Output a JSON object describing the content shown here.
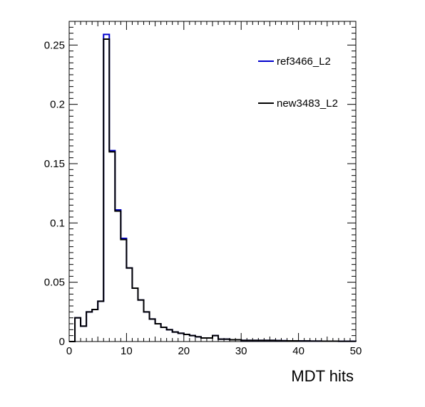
{
  "chart_data": {
    "type": "histogram",
    "xlabel": "MDT hits",
    "ylabel": "",
    "xlim": [
      0,
      50
    ],
    "ylim": [
      0,
      0.27
    ],
    "bin_width": 1,
    "grid": false,
    "legend_position": "top-right",
    "x_ticks": [
      0,
      10,
      20,
      30,
      40,
      50
    ],
    "x_tick_labels": [
      "0",
      "10",
      "20",
      "30",
      "40",
      "50"
    ],
    "y_ticks": [
      0,
      0.05,
      0.1,
      0.15,
      0.2,
      0.25
    ],
    "y_tick_labels": [
      "0",
      "0.05",
      "0.1",
      "0.15",
      "0.2",
      "0.25"
    ],
    "series": [
      {
        "name": "ref3466_L2",
        "color": "#0000cc",
        "values": [
          0.0,
          0.02,
          0.013,
          0.025,
          0.027,
          0.034,
          0.259,
          0.161,
          0.111,
          0.087,
          0.062,
          0.045,
          0.035,
          0.025,
          0.019,
          0.015,
          0.012,
          0.01,
          0.008,
          0.007,
          0.006,
          0.005,
          0.004,
          0.003,
          0.003,
          0.005,
          0.002,
          0.002,
          0.0015,
          0.0015,
          0.001,
          0.001,
          0.001,
          0.001,
          0.001,
          0.001,
          0.0008,
          0.0007,
          0.0006,
          0.0006,
          0.0005,
          0.0005,
          0.0004,
          0.0004,
          0.0003,
          0.0003,
          0.0003,
          0.0002,
          0.0002,
          0.0002
        ]
      },
      {
        "name": "new3483_L2",
        "color": "#000000",
        "values": [
          0.0,
          0.02,
          0.013,
          0.025,
          0.027,
          0.034,
          0.255,
          0.16,
          0.11,
          0.086,
          0.062,
          0.045,
          0.035,
          0.025,
          0.019,
          0.015,
          0.012,
          0.01,
          0.008,
          0.007,
          0.006,
          0.005,
          0.004,
          0.003,
          0.003,
          0.005,
          0.002,
          0.002,
          0.0015,
          0.0015,
          0.001,
          0.001,
          0.001,
          0.001,
          0.001,
          0.001,
          0.0008,
          0.0007,
          0.0006,
          0.0006,
          0.0005,
          0.0005,
          0.0004,
          0.0004,
          0.0003,
          0.0003,
          0.0003,
          0.0002,
          0.0002,
          0.0002
        ]
      }
    ]
  }
}
